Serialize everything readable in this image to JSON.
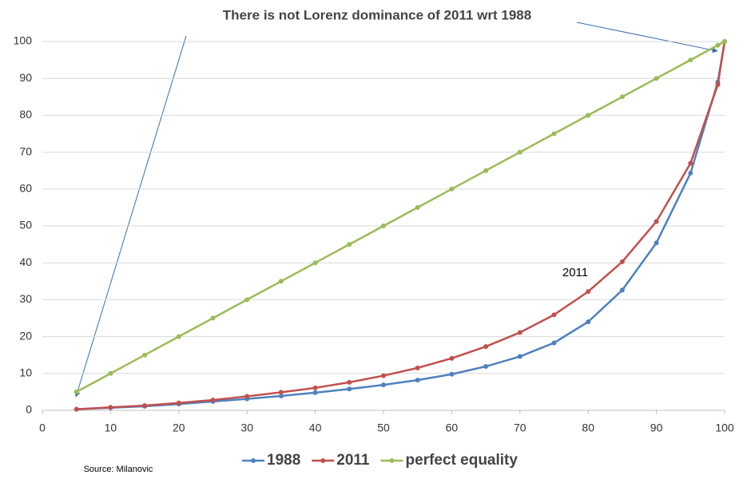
{
  "chart_data": {
    "type": "line",
    "title": "There is not Lorenz dominance of 2011 wrt 1988",
    "annotations": [
      "2011"
    ],
    "source": "Source: Milanovic",
    "x": [
      5,
      10,
      15,
      20,
      25,
      30,
      35,
      40,
      45,
      50,
      55,
      60,
      65,
      70,
      75,
      80,
      85,
      90,
      95,
      99,
      100
    ],
    "series": [
      {
        "name": "1988",
        "color": "#4f81bd",
        "values": [
          0.3,
          0.7,
          1.1,
          1.7,
          2.4,
          3.1,
          3.9,
          4.8,
          5.8,
          6.9,
          8.2,
          9.8,
          11.9,
          14.6,
          18.3,
          24,
          32.6,
          45.4,
          64.3,
          89,
          100
        ]
      },
      {
        "name": "2011",
        "color": "#c0504d",
        "values": [
          0.3,
          0.8,
          1.3,
          2.0,
          2.8,
          3.8,
          4.9,
          6.1,
          7.6,
          9.4,
          11.5,
          14.1,
          17.3,
          21.1,
          25.9,
          32.2,
          40.3,
          51.2,
          67,
          88.3,
          100
        ]
      },
      {
        "name": "perfect equality",
        "color": "#9bbb59",
        "values": [
          5,
          10,
          15,
          20,
          25,
          30,
          35,
          40,
          45,
          50,
          55,
          60,
          65,
          70,
          75,
          80,
          85,
          90,
          95,
          99,
          100
        ]
      }
    ],
    "xlim": [
      0,
      100
    ],
    "xticks": [
      0,
      10,
      20,
      30,
      40,
      50,
      60,
      70,
      80,
      90,
      100
    ],
    "ylim": [
      0,
      100
    ],
    "yticks": [
      0,
      10,
      20,
      30,
      40,
      50,
      60,
      70,
      80,
      90,
      100
    ],
    "grid": true
  }
}
